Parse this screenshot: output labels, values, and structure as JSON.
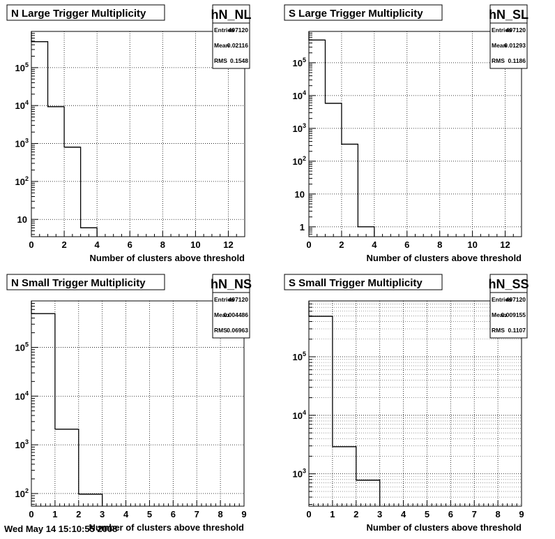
{
  "chart_data": [
    {
      "type": "bar",
      "title": "N Large Trigger Multiplicity",
      "histogram_name": "hN_NL",
      "stats": [
        {
          "label": "Entries",
          "value": "497120"
        },
        {
          "label": "Mean",
          "value": "0.02116"
        },
        {
          "label": "RMS",
          "value": "0.1548"
        }
      ],
      "xlabel": "Number of clusters above threshold",
      "ylabel": "",
      "xlim": [
        0,
        13
      ],
      "ylim": [
        3.5,
        900000
      ],
      "yscale": "log",
      "grid": true,
      "x_ticks": [
        0,
        2,
        4,
        6,
        8,
        10,
        12
      ],
      "y_ticks": [
        {
          "value": 10,
          "label": "10"
        },
        {
          "value": 100,
          "label": "10^2"
        },
        {
          "value": 1000,
          "label": "10^3"
        },
        {
          "value": 10000,
          "label": "10^4"
        },
        {
          "value": 100000,
          "label": "10^5"
        }
      ],
      "bins": [
        {
          "x0": 0,
          "x1": 1,
          "value": 485000
        },
        {
          "x0": 1,
          "x1": 2,
          "value": 9300
        },
        {
          "x0": 2,
          "x1": 3,
          "value": 800
        },
        {
          "x0": 3,
          "x1": 4,
          "value": 6
        }
      ]
    },
    {
      "type": "bar",
      "title": "S Large Trigger Multiplicity",
      "histogram_name": "hN_SL",
      "stats": [
        {
          "label": "Entries",
          "value": "497120"
        },
        {
          "label": "Mean",
          "value": "0.01293"
        },
        {
          "label": "RMS",
          "value": "0.1186"
        }
      ],
      "xlabel": "Number of clusters above threshold",
      "ylabel": "",
      "xlim": [
        0,
        13
      ],
      "ylim": [
        0.5,
        900000
      ],
      "yscale": "log",
      "grid": true,
      "x_ticks": [
        0,
        2,
        4,
        6,
        8,
        10,
        12
      ],
      "y_ticks": [
        {
          "value": 1,
          "label": "1"
        },
        {
          "value": 10,
          "label": "10"
        },
        {
          "value": 100,
          "label": "10^2"
        },
        {
          "value": 1000,
          "label": "10^3"
        },
        {
          "value": 10000,
          "label": "10^4"
        },
        {
          "value": 100000,
          "label": "10^5"
        }
      ],
      "bins": [
        {
          "x0": 0,
          "x1": 1,
          "value": 490000
        },
        {
          "x0": 1,
          "x1": 2,
          "value": 5800
        },
        {
          "x0": 2,
          "x1": 3,
          "value": 330
        },
        {
          "x0": 3,
          "x1": 4,
          "value": 1
        }
      ]
    },
    {
      "type": "bar",
      "title": "N Small Trigger Multiplicity",
      "histogram_name": "hN_NS",
      "stats": [
        {
          "label": "Entries",
          "value": "497120"
        },
        {
          "label": "Mean",
          "value": "0.004486"
        },
        {
          "label": "RMS",
          "value": "0.06963"
        }
      ],
      "xlabel": "Number of clusters above threshold",
      "ylabel": "",
      "xlim": [
        0,
        9
      ],
      "ylim": [
        55,
        900000
      ],
      "yscale": "log",
      "grid": true,
      "x_ticks": [
        0,
        1,
        2,
        3,
        4,
        5,
        6,
        7,
        8,
        9
      ],
      "y_ticks": [
        {
          "value": 100,
          "label": "10^2"
        },
        {
          "value": 1000,
          "label": "10^3"
        },
        {
          "value": 10000,
          "label": "10^4"
        },
        {
          "value": 100000,
          "label": "10^5"
        }
      ],
      "bins": [
        {
          "x0": 0,
          "x1": 1,
          "value": 495000
        },
        {
          "x0": 1,
          "x1": 2,
          "value": 2100
        },
        {
          "x0": 2,
          "x1": 3,
          "value": 97
        }
      ]
    },
    {
      "type": "bar",
      "title": "S Small Trigger Multiplicity",
      "histogram_name": "hN_SS",
      "stats": [
        {
          "label": "Entries",
          "value": "497120"
        },
        {
          "label": "Mean",
          "value": "0.009155"
        },
        {
          "label": "RMS",
          "value": "0.1107"
        }
      ],
      "xlabel": "Number of clusters above threshold",
      "ylabel": "",
      "xlim": [
        0,
        9
      ],
      "ylim": [
        280,
        900000
      ],
      "yscale": "log",
      "grid": true,
      "minor_grid": true,
      "x_ticks": [
        0,
        1,
        2,
        3,
        4,
        5,
        6,
        7,
        8,
        9
      ],
      "y_ticks": [
        {
          "value": 1000,
          "label": "10^3"
        },
        {
          "value": 10000,
          "label": "10^4"
        },
        {
          "value": 100000,
          "label": "10^5"
        }
      ],
      "bins": [
        {
          "x0": 0,
          "x1": 1,
          "value": 492000
        },
        {
          "x0": 1,
          "x1": 2,
          "value": 2900
        },
        {
          "x0": 2,
          "x1": 3,
          "value": 780
        }
      ]
    }
  ],
  "footer": "Wed May 14 15:10:55 2008"
}
